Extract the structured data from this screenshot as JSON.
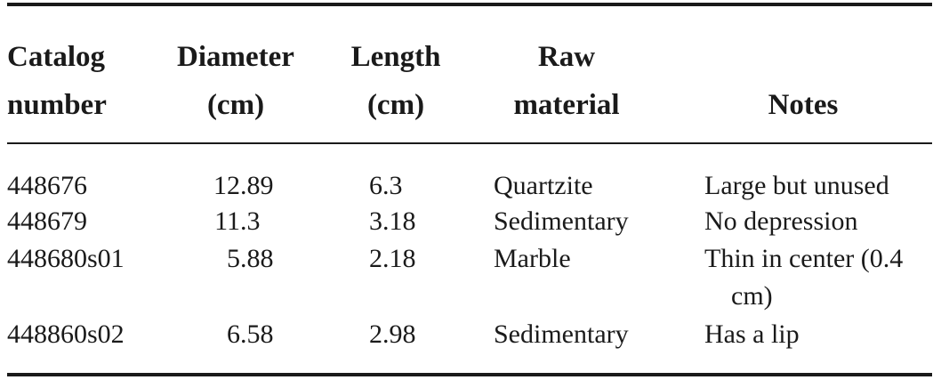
{
  "table": {
    "headers": [
      "Catalog number",
      "Diameter (cm)",
      "Length (cm)",
      "Raw material",
      "Notes"
    ],
    "rows": [
      [
        "448676",
        12.89,
        6.3,
        "Quartzite",
        "Large but unused"
      ],
      [
        "448679",
        11.3,
        3.18,
        "Sedimentary",
        "No depression"
      ],
      [
        "448680s01",
        5.88,
        2.18,
        "Marble",
        "Thin in center (0.4 cm)"
      ],
      [
        "448860s02",
        6.58,
        2.98,
        "Sedimentary",
        "Has a lip"
      ]
    ]
  }
}
